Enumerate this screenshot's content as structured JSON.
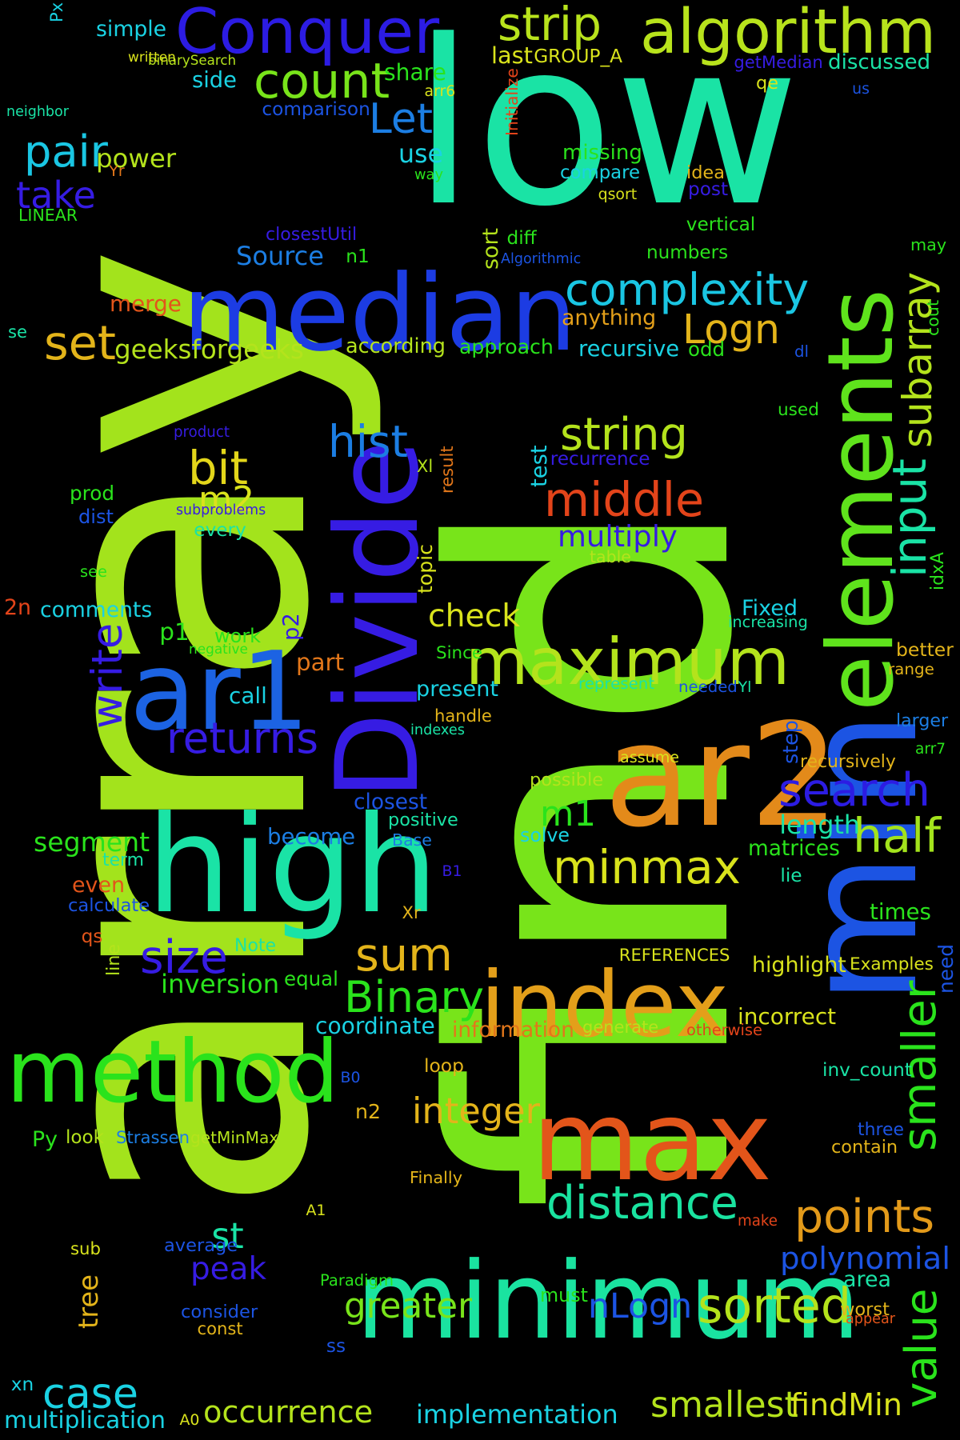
{
  "background_color": "#000000",
  "words": [
    {
      "text": "array",
      "color": "#a3e31c"
    },
    {
      "text": "find",
      "color": "#78e41a"
    },
    {
      "text": "low",
      "color": "#1ae3a5"
    },
    {
      "text": "min",
      "color": "#1c54e3"
    },
    {
      "text": "median",
      "color": "#1c3ce3"
    },
    {
      "text": "elements",
      "color": "#5fe31c"
    },
    {
      "text": "Divide",
      "color": "#361ce3"
    },
    {
      "text": "minimum",
      "color": "#1ae3a0"
    },
    {
      "text": "high",
      "color": "#1ae3a6"
    },
    {
      "text": "ar1",
      "color": "#1c63e3"
    },
    {
      "text": "ar2",
      "color": "#e38a1a"
    },
    {
      "text": "max",
      "color": "#e3551a"
    },
    {
      "text": "method",
      "color": "#2ae31c"
    },
    {
      "text": "index",
      "color": "#e39f1a"
    },
    {
      "text": "maximum",
      "color": "#b4e31c"
    },
    {
      "text": "Conquer",
      "color": "#2c1ce3"
    },
    {
      "text": "algorithm",
      "color": "#b8e31c"
    },
    {
      "text": "complexity",
      "color": "#1ac6e3"
    },
    {
      "text": "distance",
      "color": "#1ae3a0"
    },
    {
      "text": "sorted",
      "color": "#b4e31c"
    },
    {
      "text": "points",
      "color": "#e39a1a"
    },
    {
      "text": "minmax",
      "color": "#d9e31c"
    },
    {
      "text": "search",
      "color": "#2c1ce3"
    },
    {
      "text": "count",
      "color": "#78e41a"
    },
    {
      "text": "strip",
      "color": "#b8e31c"
    },
    {
      "text": "middle",
      "color": "#e3441a"
    },
    {
      "text": "string",
      "color": "#b4e31c"
    },
    {
      "text": "returns",
      "color": "#361ce3"
    },
    {
      "text": "half",
      "color": "#a3e31c"
    },
    {
      "text": "sum",
      "color": "#e3b41a"
    },
    {
      "text": "Binary",
      "color": "#2ae31c"
    },
    {
      "text": "size",
      "color": "#361ce3"
    },
    {
      "text": "hist",
      "color": "#1c7ee3"
    },
    {
      "text": "bit",
      "color": "#e3d61a"
    },
    {
      "text": "Logn",
      "color": "#e3b41a"
    },
    {
      "text": "pair",
      "color": "#1ac6e3"
    },
    {
      "text": "set",
      "color": "#e3b41a"
    },
    {
      "text": "Let",
      "color": "#1c7ee3"
    },
    {
      "text": "case",
      "color": "#1ad2e3"
    },
    {
      "text": "peak",
      "color": "#361ce3"
    },
    {
      "text": "polynomial",
      "color": "#1c54e3"
    },
    {
      "text": "value",
      "color": "#2ae31c"
    },
    {
      "text": "subarray",
      "color": "#b4e31c"
    },
    {
      "text": "input",
      "color": "#1ae3a6"
    },
    {
      "text": "smaller",
      "color": "#2ae31c"
    },
    {
      "text": "smallest",
      "color": "#b4e31c"
    },
    {
      "text": "occurrence",
      "color": "#b4e31c"
    },
    {
      "text": "implementation",
      "color": "#1ad2e3"
    },
    {
      "text": "multiplication",
      "color": "#1ad2e3"
    },
    {
      "text": "greater",
      "color": "#78e41a"
    },
    {
      "text": "nLogn",
      "color": "#1c54e3"
    },
    {
      "text": "findMin",
      "color": "#d9e31c"
    },
    {
      "text": "integer",
      "color": "#e3b41a"
    },
    {
      "text": "write",
      "color": "#361ce3"
    },
    {
      "text": "check",
      "color": "#d9e31c"
    },
    {
      "text": "multiply",
      "color": "#361ce3"
    },
    {
      "text": "m2",
      "color": "#d9e31c"
    },
    {
      "text": "m1",
      "color": "#2ae31c"
    },
    {
      "text": "take",
      "color": "#361ce3"
    },
    {
      "text": "power",
      "color": "#b4e31c"
    },
    {
      "text": "merge",
      "color": "#e3551a"
    },
    {
      "text": "geeksforgeeks",
      "color": "#b4e31c"
    },
    {
      "text": "Source",
      "color": "#1c7ee3"
    },
    {
      "text": "st",
      "color": "#1ae3a6"
    },
    {
      "text": "tree",
      "color": "#e3b41a"
    },
    {
      "text": "inversion",
      "color": "#2ae31c"
    },
    {
      "text": "segment",
      "color": "#2ae31c"
    },
    {
      "text": "closest",
      "color": "#1c54e3"
    },
    {
      "text": "information",
      "color": "#e3771a"
    },
    {
      "text": "coordinate",
      "color": "#1ad2e3"
    },
    {
      "text": "highlight",
      "color": "#d9e31c"
    },
    {
      "text": "incorrect",
      "color": "#d9e31c"
    },
    {
      "text": "simple",
      "color": "#1ad2e3"
    },
    {
      "text": "share",
      "color": "#2ae31c"
    },
    {
      "text": "last",
      "color": "#d9e31c"
    },
    {
      "text": "side",
      "color": "#1ad2e3"
    },
    {
      "text": "use",
      "color": "#1ad2e3"
    },
    {
      "text": "missing",
      "color": "#2ae31c"
    },
    {
      "text": "compare",
      "color": "#1ad2e3"
    },
    {
      "text": "recursive",
      "color": "#1ad2e3"
    },
    {
      "text": "approach",
      "color": "#2ae31c"
    },
    {
      "text": "according",
      "color": "#b4e31c"
    },
    {
      "text": "anything",
      "color": "#e39f1a"
    },
    {
      "text": "comments",
      "color": "#1ad2e3"
    },
    {
      "text": "part",
      "color": "#e3771a"
    },
    {
      "text": "call",
      "color": "#1ad2e3"
    },
    {
      "text": "present",
      "color": "#1ad2e3"
    },
    {
      "text": "Fixed",
      "color": "#1ad2e3"
    },
    {
      "text": "length",
      "color": "#1ae3a6"
    },
    {
      "text": "matrices",
      "color": "#2ae31c"
    },
    {
      "text": "become",
      "color": "#1c7ee3"
    },
    {
      "text": "even",
      "color": "#e3551a"
    },
    {
      "text": "calculate",
      "color": "#1c54e3"
    },
    {
      "text": "times",
      "color": "#2ae31c"
    },
    {
      "text": "equal",
      "color": "#2ae31c"
    },
    {
      "text": "area",
      "color": "#1ae3a6"
    },
    {
      "text": "worst",
      "color": "#e3b41a"
    },
    {
      "text": "p1",
      "color": "#2ae31c"
    },
    {
      "text": "work",
      "color": "#2ae31c"
    },
    {
      "text": "positive",
      "color": "#1ae3a6"
    },
    {
      "text": "solve",
      "color": "#1ad2e3"
    },
    {
      "text": "possible",
      "color": "#b4e31c"
    },
    {
      "text": "recursively",
      "color": "#e3b41a"
    },
    {
      "text": "step",
      "color": "#1c54e3"
    },
    {
      "text": "better",
      "color": "#e3b41a"
    },
    {
      "text": "range",
      "color": "#e3b41a"
    },
    {
      "text": "larger",
      "color": "#1c7ee3"
    },
    {
      "text": "inv_count",
      "color": "#1ae3a6"
    },
    {
      "text": "three",
      "color": "#1c54e3"
    },
    {
      "text": "contain",
      "color": "#e3b41a"
    },
    {
      "text": "Examples",
      "color": "#d9e31c"
    },
    {
      "text": "need",
      "color": "#1c54e3"
    },
    {
      "text": "loop",
      "color": "#e3b41a"
    },
    {
      "text": "n2",
      "color": "#e3b41a"
    },
    {
      "text": "look",
      "color": "#b4e31c"
    },
    {
      "text": "Strassen",
      "color": "#1c7ee3"
    },
    {
      "text": "getMinMax",
      "color": "#b4e31c"
    },
    {
      "text": "Py",
      "color": "#2ae31c"
    },
    {
      "text": "Finally",
      "color": "#e3b41a"
    },
    {
      "text": "average",
      "color": "#1c54e3"
    },
    {
      "text": "consider",
      "color": "#1c54e3"
    },
    {
      "text": "const",
      "color": "#e3b41a"
    },
    {
      "text": "sub",
      "color": "#d9e31c"
    },
    {
      "text": "must",
      "color": "#2ae31c"
    },
    {
      "text": "Paradigm",
      "color": "#2ae31c"
    },
    {
      "text": "appear",
      "color": "#e3551a"
    },
    {
      "text": "make",
      "color": "#e3441a"
    },
    {
      "text": "ss",
      "color": "#1c54e3"
    },
    {
      "text": "xn",
      "color": "#1ad2e3"
    },
    {
      "text": "A0",
      "color": "#d9e31c"
    },
    {
      "text": "A1",
      "color": "#d9e31c"
    },
    {
      "text": "B0",
      "color": "#1c54e3"
    },
    {
      "text": "B1",
      "color": "#361ce3"
    },
    {
      "text": "Xr",
      "color": "#e3b41a"
    },
    {
      "text": "Xl",
      "color": "#b4e31c"
    },
    {
      "text": "qs",
      "color": "#e3551a"
    },
    {
      "text": "line",
      "color": "#b4e31c"
    },
    {
      "text": "Note",
      "color": "#1ae3a6"
    },
    {
      "text": "term",
      "color": "#1ae3a6"
    },
    {
      "text": "Base",
      "color": "#1c7ee3"
    },
    {
      "text": "REFERENCES",
      "color": "#d9e31c"
    },
    {
      "text": "generate",
      "color": "#b4e31c"
    },
    {
      "text": "otherwise",
      "color": "#e3441a"
    },
    {
      "text": "lie",
      "color": "#1ae3a6"
    },
    {
      "text": "handle",
      "color": "#e3b41a"
    },
    {
      "text": "indexes",
      "color": "#1ae3a6"
    },
    {
      "text": "Since",
      "color": "#2ae31c"
    },
    {
      "text": "negative",
      "color": "#2ae31c"
    },
    {
      "text": "p2",
      "color": "#361ce3"
    },
    {
      "text": "2n",
      "color": "#e3441a"
    },
    {
      "text": "see",
      "color": "#2ae31c"
    },
    {
      "text": "topic",
      "color": "#d9e31c"
    },
    {
      "text": "every",
      "color": "#1ae3a6"
    },
    {
      "text": "dist",
      "color": "#1c54e3"
    },
    {
      "text": "prod",
      "color": "#2ae31c"
    },
    {
      "text": "subproblems",
      "color": "#361ce3"
    },
    {
      "text": "product",
      "color": "#361ce3"
    },
    {
      "text": "table",
      "color": "#b4e31c"
    },
    {
      "text": "test",
      "color": "#1ad2e3"
    },
    {
      "text": "result",
      "color": "#e3771a"
    },
    {
      "text": "recurrence",
      "color": "#361ce3"
    },
    {
      "text": "used",
      "color": "#2ae31c"
    },
    {
      "text": "dl",
      "color": "#1c54e3"
    },
    {
      "text": "odd",
      "color": "#2ae31c"
    },
    {
      "text": "increasing",
      "color": "#1ae3a6"
    },
    {
      "text": "represent",
      "color": "#1ae3a6"
    },
    {
      "text": "needed",
      "color": "#1c54e3"
    },
    {
      "text": "Yl",
      "color": "#1ae3a6"
    },
    {
      "text": "assume",
      "color": "#d9e31c"
    },
    {
      "text": "arr7",
      "color": "#2ae31c"
    },
    {
      "text": "idxA",
      "color": "#2ae31c"
    },
    {
      "text": "cout",
      "color": "#2ae31c"
    },
    {
      "text": "may",
      "color": "#2ae31c"
    },
    {
      "text": "vertical",
      "color": "#2ae31c"
    },
    {
      "text": "numbers",
      "color": "#2ae31c"
    },
    {
      "text": "diff",
      "color": "#2ae31c"
    },
    {
      "text": "sort",
      "color": "#b4e31c"
    },
    {
      "text": "Algorithmic",
      "color": "#1c54e3"
    },
    {
      "text": "n1",
      "color": "#2ae31c"
    },
    {
      "text": "closestUtil",
      "color": "#361ce3"
    },
    {
      "text": "qsort",
      "color": "#d9e31c"
    },
    {
      "text": "post",
      "color": "#361ce3"
    },
    {
      "text": "idea",
      "color": "#e3b41a"
    },
    {
      "text": "way",
      "color": "#2ae31c"
    },
    {
      "text": "Initialize",
      "color": "#e3441a"
    },
    {
      "text": "arr6",
      "color": "#d9e31c"
    },
    {
      "text": "comparison",
      "color": "#1c54e3"
    },
    {
      "text": "binarySearch",
      "color": "#b4e31c"
    },
    {
      "text": "written",
      "color": "#d9e31c"
    },
    {
      "text": "Px",
      "color": "#1ad2e3"
    },
    {
      "text": "GROUP_A",
      "color": "#d9e31c"
    },
    {
      "text": "getMedian",
      "color": "#361ce3"
    },
    {
      "text": "discussed",
      "color": "#1ae3a6"
    },
    {
      "text": "qe",
      "color": "#d9e31c"
    },
    {
      "text": "us",
      "color": "#1c54e3"
    },
    {
      "text": "neighbor",
      "color": "#1ae3a6"
    },
    {
      "text": "Yr",
      "color": "#e3771a"
    },
    {
      "text": "LINEAR",
      "color": "#2ae31c"
    },
    {
      "text": "se",
      "color": "#1ae3a6"
    }
  ]
}
